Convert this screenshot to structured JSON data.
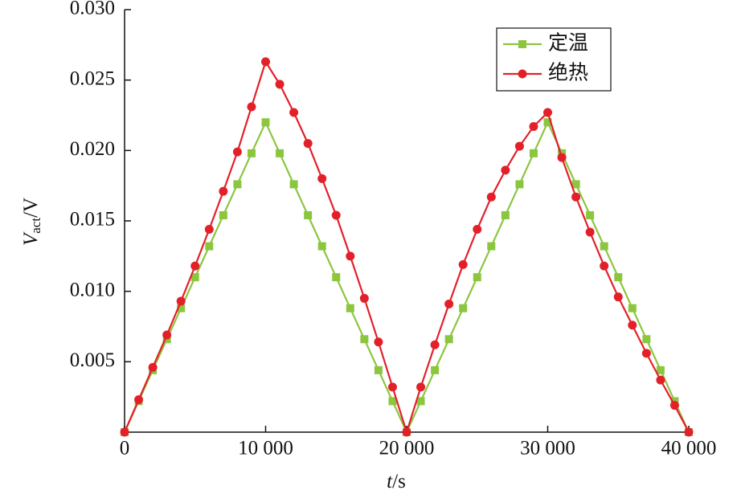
{
  "chart_data": {
    "type": "line",
    "x_label": {
      "symbol": "t",
      "unit": "/s"
    },
    "y_label": {
      "symbol": "V",
      "subscript": "act",
      "unit": "/V"
    },
    "x": [
      0,
      1000,
      2000,
      3000,
      4000,
      5000,
      6000,
      7000,
      8000,
      9000,
      10000,
      11000,
      12000,
      13000,
      14000,
      15000,
      16000,
      17000,
      18000,
      19000,
      20000,
      21000,
      22000,
      23000,
      24000,
      25000,
      26000,
      27000,
      28000,
      29000,
      30000,
      31000,
      32000,
      33000,
      34000,
      35000,
      36000,
      37000,
      38000,
      39000,
      40000
    ],
    "series": [
      {
        "name": "定温",
        "color": "#8cc63f",
        "marker": "square",
        "values": [
          0,
          0.0022,
          0.0044,
          0.0066,
          0.0088,
          0.011,
          0.0132,
          0.0154,
          0.0176,
          0.0198,
          0.022,
          0.0198,
          0.0176,
          0.0154,
          0.0132,
          0.011,
          0.0088,
          0.0066,
          0.0044,
          0.0022,
          0,
          0.0022,
          0.0044,
          0.0066,
          0.0088,
          0.011,
          0.0132,
          0.0154,
          0.0176,
          0.0198,
          0.022,
          0.0198,
          0.0176,
          0.0154,
          0.0132,
          0.011,
          0.0088,
          0.0066,
          0.0044,
          0.0022,
          0
        ]
      },
      {
        "name": "绝热",
        "color": "#e3202a",
        "marker": "circle",
        "values": [
          0,
          0.0023,
          0.0046,
          0.0069,
          0.0093,
          0.0118,
          0.0144,
          0.0171,
          0.0199,
          0.0231,
          0.0263,
          0.0247,
          0.0227,
          0.0205,
          0.018,
          0.0154,
          0.0125,
          0.0095,
          0.0064,
          0.0032,
          0,
          0.0032,
          0.0062,
          0.0091,
          0.0119,
          0.0144,
          0.0167,
          0.0186,
          0.0203,
          0.0217,
          0.0227,
          0.0195,
          0.0167,
          0.0142,
          0.0118,
          0.0096,
          0.0076,
          0.0056,
          0.0037,
          0.0019,
          0
        ]
      }
    ],
    "xlim": [
      0,
      40000
    ],
    "ylim": [
      0,
      0.03
    ],
    "xticks": [
      0,
      {
        "value": 10000,
        "label": "10 000"
      },
      {
        "value": 20000,
        "label": "20 000"
      },
      {
        "value": 30000,
        "label": "30 000"
      },
      {
        "value": 40000,
        "label": "40 000"
      }
    ],
    "yticks": [
      0.005,
      {
        "value": 0.01,
        "label": "0.010"
      },
      0.015,
      {
        "value": 0.02,
        "label": "0.020"
      },
      0.025,
      {
        "value": 0.03,
        "label": "0.030"
      }
    ],
    "grid": false,
    "legend": "top-right"
  }
}
